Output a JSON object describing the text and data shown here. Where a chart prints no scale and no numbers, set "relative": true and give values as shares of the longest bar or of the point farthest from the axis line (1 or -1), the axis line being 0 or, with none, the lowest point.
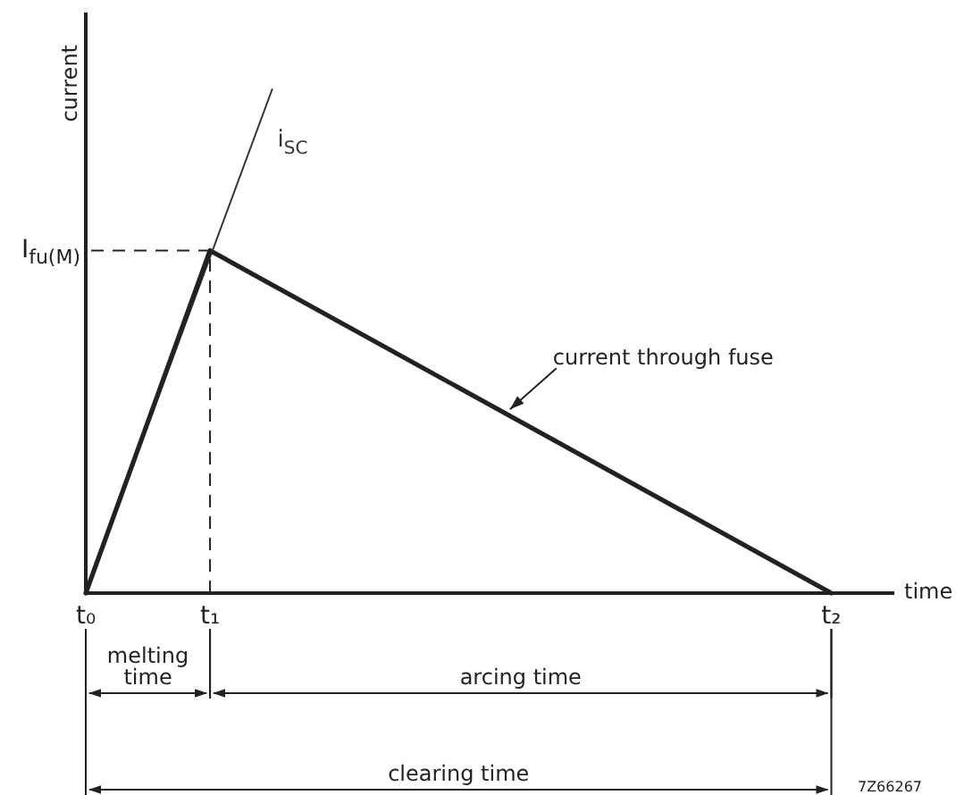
{
  "chart_data": {
    "type": "line",
    "xlabel": "time",
    "ylabel": "current",
    "categories": [
      "t₀",
      null,
      "t₁",
      null,
      null,
      null,
      null,
      null,
      null,
      null,
      null,
      null,
      "t₂",
      null
    ],
    "series": [
      {
        "name": "current through fuse",
        "color": "#222222",
        "values": [
          0,
          null,
          0.68,
          null,
          null,
          null,
          null,
          null,
          null,
          null,
          null,
          null,
          0,
          null
        ]
      },
      {
        "name": "i$_{SC}$",
        "color": "#333333",
        "values": [
          0,
          null,
          null,
          1,
          null,
          null,
          null,
          null,
          null,
          null,
          null,
          null,
          null,
          null
        ]
      }
    ],
    "relative": true,
    "ref_lines": [
      {
        "axis": "y",
        "value": 0.68,
        "label": "I$_{fu(M)}$",
        "line_style": "dashed"
      },
      {
        "axis": "x",
        "value": "t₁",
        "line_style": "dashed"
      }
    ],
    "annotations": [
      "melting time",
      "arcing time",
      "clearing time",
      "7Z66267"
    ]
  }
}
